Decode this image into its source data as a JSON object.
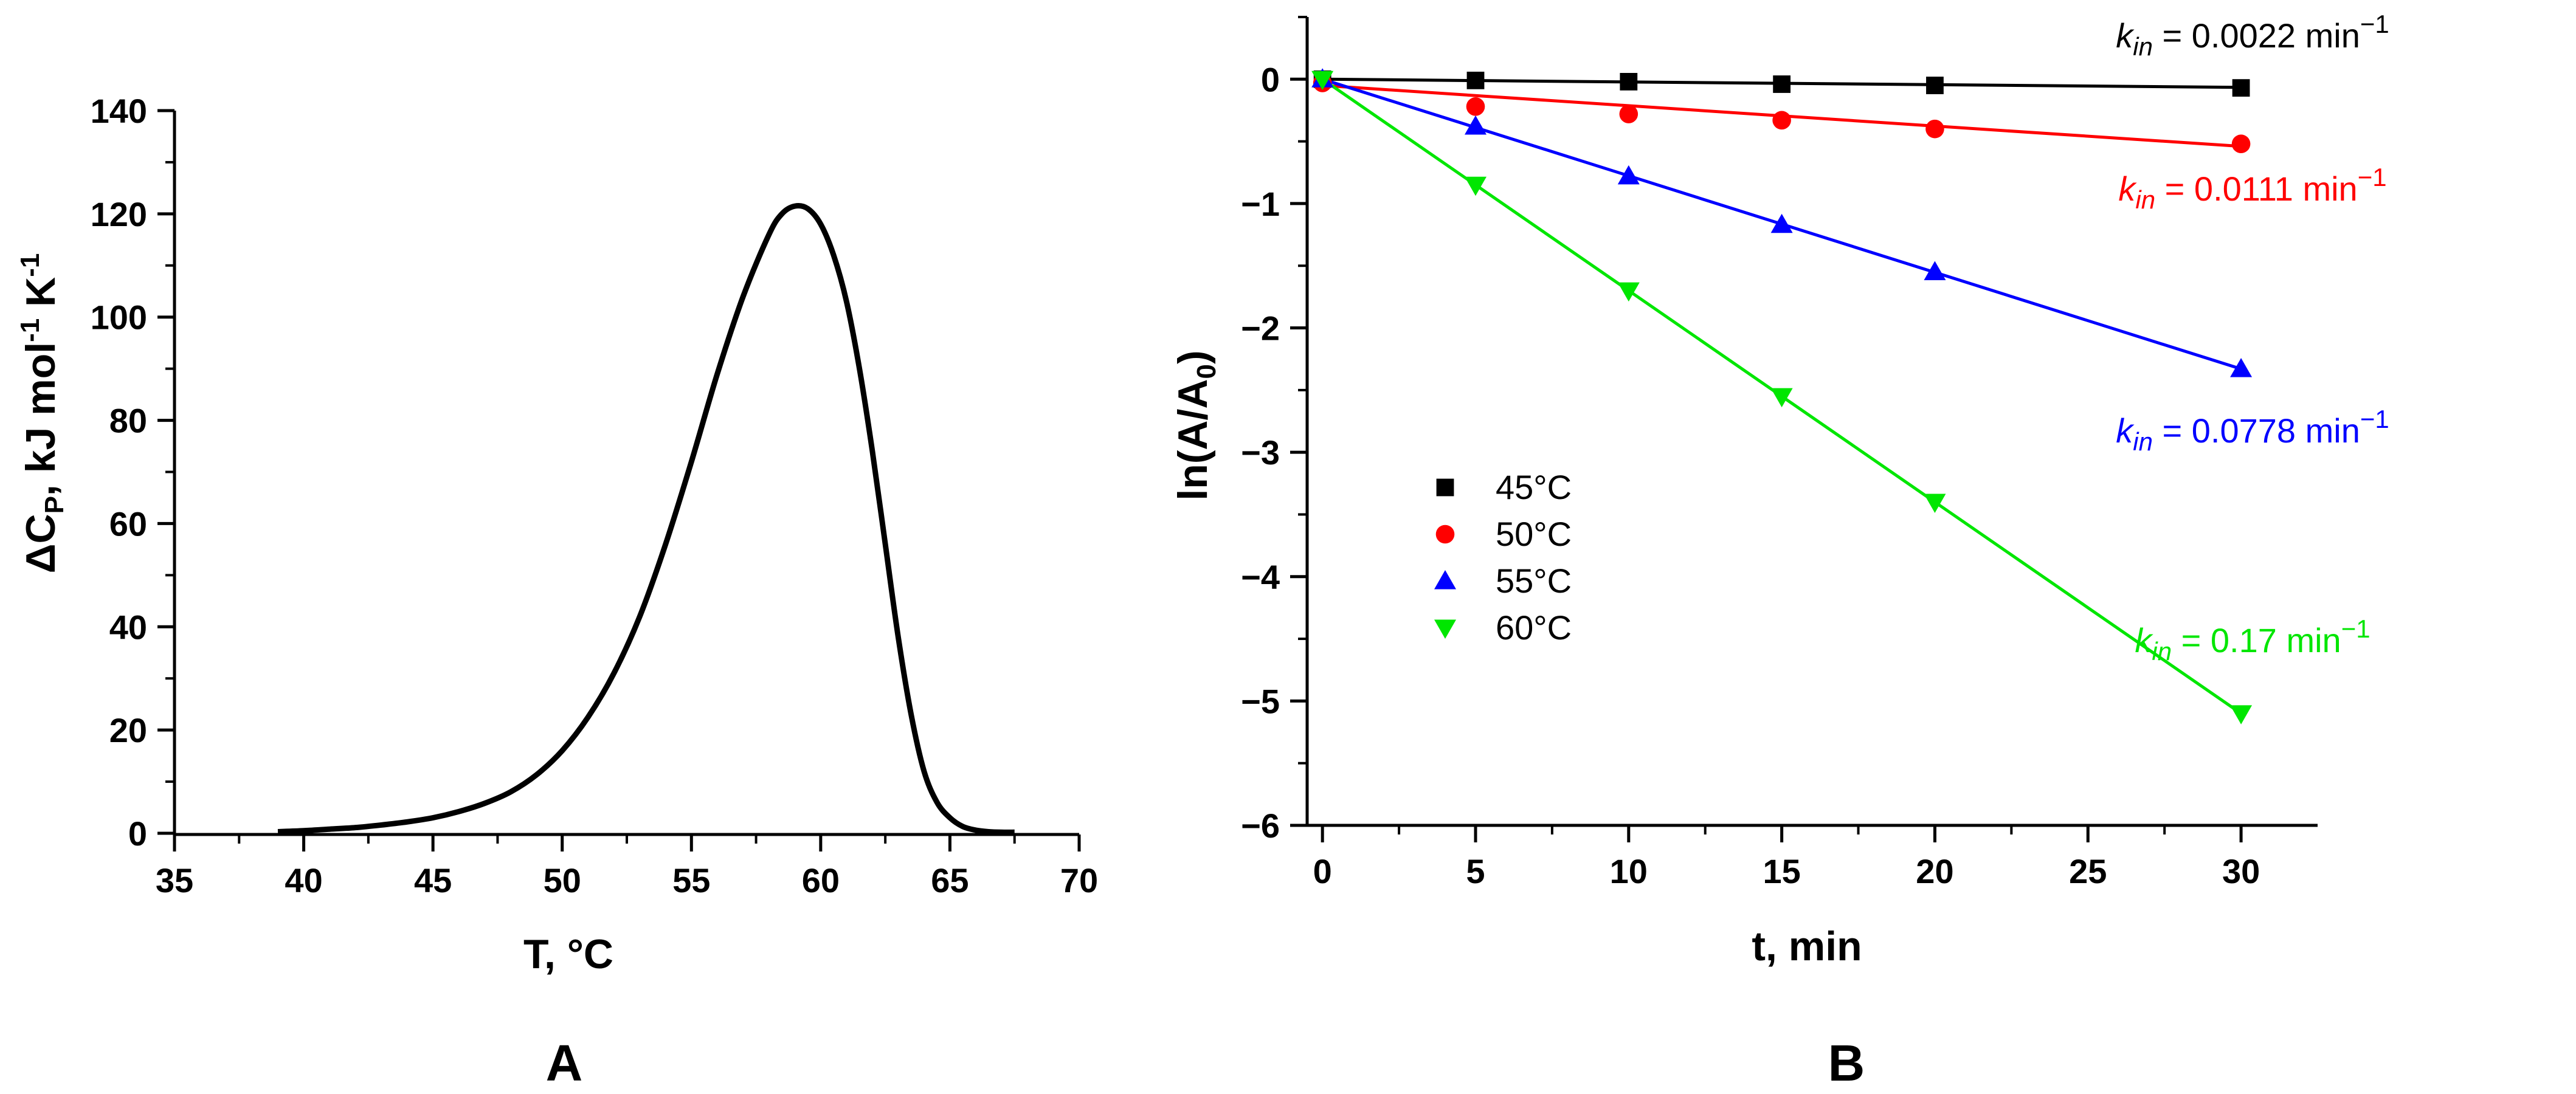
{
  "chart_data": [
    {
      "panel_label": "A",
      "type": "line",
      "xlabel": "T, °C",
      "ylabel_main": "ΔC",
      "ylabel_sub": "P",
      "ylabel_rest1": ", kJ mol",
      "ylabel_sup1": "-1",
      "ylabel_rest2": " K",
      "ylabel_sup2": "-1",
      "xlim": [
        35,
        70
      ],
      "ylim": [
        0,
        140
      ],
      "xticks": [
        "35",
        "40",
        "45",
        "50",
        "55",
        "60",
        "65",
        "70"
      ],
      "yticks": [
        "0",
        "20",
        "40",
        "60",
        "80",
        "100",
        "120",
        "140"
      ],
      "grid": false,
      "series": [
        {
          "color": "#000000",
          "x": [
            39,
            40,
            41,
            42,
            43,
            44,
            45,
            46,
            47,
            48,
            49,
            50,
            51,
            52,
            53,
            54,
            55,
            56,
            57,
            58,
            58.5,
            59,
            59.5,
            60,
            60.5,
            61,
            61.5,
            62,
            62.5,
            63,
            63.5,
            64,
            64.5,
            65,
            65.5,
            66,
            66.5,
            67,
            67.5
          ],
          "y": [
            0.3,
            0.5,
            0.8,
            1.1,
            1.6,
            2.2,
            3,
            4.2,
            5.8,
            8,
            11.3,
            16,
            22.5,
            31,
            42,
            56,
            72,
            89,
            104,
            116,
            120,
            121.5,
            121,
            118,
            112,
            103,
            90,
            74,
            56,
            38,
            23,
            12,
            6,
            3,
            1.3,
            0.6,
            0.3,
            0.2,
            0.2
          ]
        }
      ]
    },
    {
      "panel_label": "B",
      "type": "scatter",
      "xlabel": "t, min",
      "ylabel_main": "ln(A/A",
      "ylabel_sub": "0",
      "ylabel_end": ")",
      "xlim": [
        -0.5,
        32.5
      ],
      "ylim": [
        -6,
        0.5
      ],
      "xticks": [
        0,
        5,
        10,
        15,
        20,
        25,
        30
      ],
      "yticks": [
        0,
        -1,
        -2,
        -3,
        -4,
        -5,
        -6
      ],
      "xtick_labels": [
        "0",
        "5",
        "10",
        "15",
        "20",
        "25",
        "30"
      ],
      "ytick_labels": [
        "0",
        "−1",
        "−2",
        "−3",
        "−4",
        "−5",
        "−6"
      ],
      "grid": false,
      "legend_position": "center-left",
      "series": [
        {
          "name": "45°C",
          "color": "#000000",
          "marker": "square",
          "x": [
            0,
            5,
            10,
            15,
            20,
            30
          ],
          "y": [
            0,
            -0.01,
            -0.02,
            -0.04,
            -0.05,
            -0.07
          ],
          "fit_y": [
            0,
            -0.066
          ]
        },
        {
          "name": "50°C",
          "color": "#ff0000",
          "marker": "circle",
          "x": [
            0,
            5,
            10,
            15,
            20,
            30
          ],
          "y": [
            -0.03,
            -0.22,
            -0.28,
            -0.33,
            -0.4,
            -0.52
          ],
          "fit_y": [
            -0.05,
            -0.54
          ]
        },
        {
          "name": "55°C",
          "color": "#0000ff",
          "marker": "triangle-up",
          "x": [
            0,
            5,
            10,
            15,
            20,
            30
          ],
          "y": [
            0,
            -0.38,
            -0.78,
            -1.17,
            -1.55,
            -2.33
          ],
          "fit_y": [
            0,
            -2.33
          ]
        },
        {
          "name": "60°C",
          "color": "#00e600",
          "marker": "triangle-down",
          "x": [
            0,
            5,
            10,
            15,
            20,
            30
          ],
          "y": [
            0,
            -0.85,
            -1.7,
            -2.55,
            -3.4,
            -5.1
          ],
          "fit_y": [
            0,
            -5.1
          ]
        }
      ],
      "annotations": [
        {
          "k": "k",
          "sub": "in",
          "value": " = 0.0022 min",
          "sup": "−1",
          "color": "#000000"
        },
        {
          "k": "k",
          "sub": "in",
          "value": " = 0.0111 min",
          "sup": "−1",
          "color": "#ff0000"
        },
        {
          "k": "k",
          "sub": "in",
          "value": " = 0.0778 min",
          "sup": "−1",
          "color": "#0000ff"
        },
        {
          "k": "k",
          "sub": "in",
          "value": " = 0.17 min",
          "sup": "−1",
          "color": "#00e600"
        }
      ]
    }
  ]
}
